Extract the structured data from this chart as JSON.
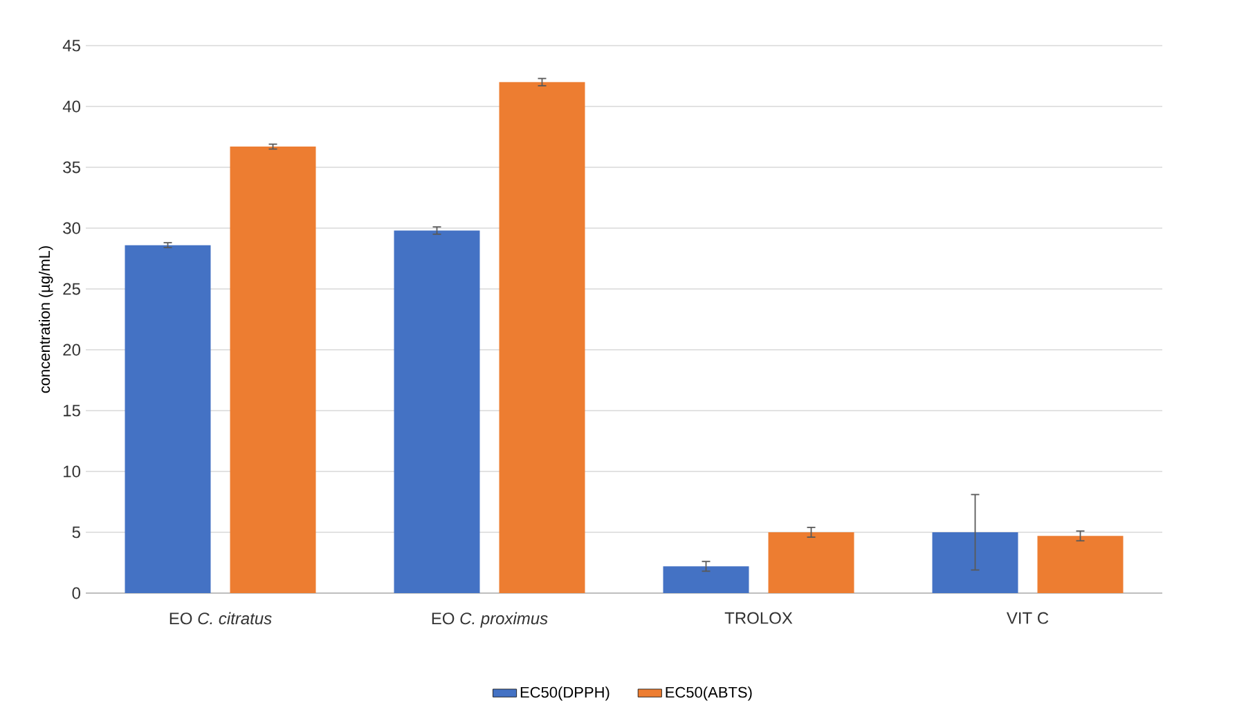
{
  "chart_data": {
    "type": "bar",
    "ylabel": "concentration (µg/mL)",
    "categories": [
      "EO *C. citratus*",
      "EO *C. proximus*",
      "TROLOX",
      "VIT C"
    ],
    "series": [
      {
        "name": "EC50(DPPH)",
        "color": "#4472c4",
        "values": [
          28.6,
          29.8,
          2.2,
          5.0
        ],
        "errors": [
          0.2,
          0.3,
          0.4,
          3.1
        ]
      },
      {
        "name": "EC50(ABTS)",
        "color": "#ed7d31",
        "values": [
          36.7,
          42.0,
          5.0,
          4.7
        ],
        "errors": [
          0.2,
          0.3,
          0.4,
          0.4
        ]
      }
    ],
    "ylim": [
      0,
      45
    ],
    "yticks": [
      0,
      5,
      10,
      15,
      20,
      25,
      30,
      35,
      40,
      45
    ],
    "grid": "y",
    "legend": "bottom"
  }
}
